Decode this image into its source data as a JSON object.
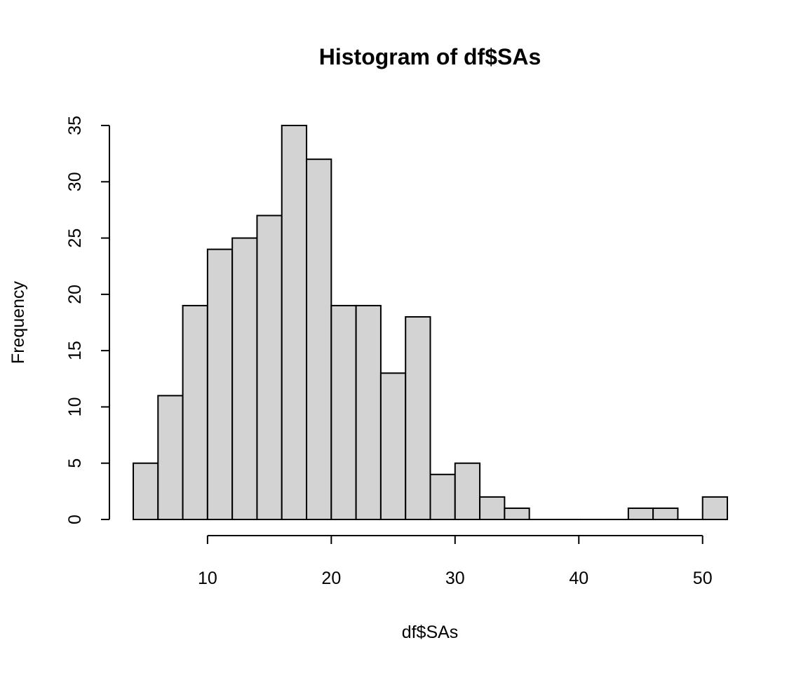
{
  "chart_data": {
    "type": "bar",
    "subtype": "histogram",
    "title": "Histogram of df$SAs",
    "xlabel": "df$SAs",
    "ylabel": "Frequency",
    "bin_edges": [
      4,
      6,
      8,
      10,
      12,
      14,
      16,
      18,
      20,
      22,
      24,
      26,
      28,
      30,
      32,
      34,
      36,
      38,
      40,
      42,
      44,
      46,
      48,
      50,
      52
    ],
    "values": [
      5,
      11,
      19,
      24,
      25,
      27,
      35,
      32,
      19,
      19,
      13,
      18,
      4,
      5,
      2,
      1,
      0,
      0,
      0,
      0,
      1,
      1,
      0,
      2
    ],
    "x_ticks": [
      "10",
      "20",
      "30",
      "40",
      "50"
    ],
    "y_ticks": [
      "0",
      "5",
      "10",
      "15",
      "20",
      "25",
      "30",
      "35"
    ],
    "xlim": [
      4,
      52
    ],
    "ylim": [
      0,
      35
    ],
    "bar_color": "#d3d3d3",
    "grid": false,
    "legend": "none"
  }
}
